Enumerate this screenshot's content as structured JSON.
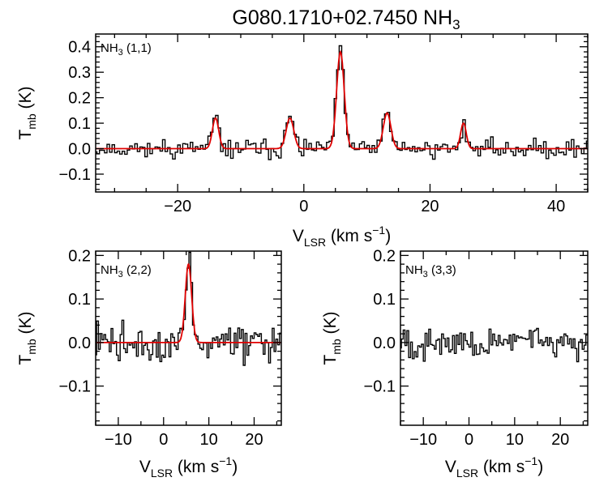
{
  "title": {
    "main": "G080.1710+02.7450 NH",
    "sub": "3"
  },
  "ylabel": {
    "main": "T",
    "sub": "mb",
    "unit": " (K)"
  },
  "xlabel": {
    "main": "V",
    "sub": "LSR",
    "unit": " (km s",
    "sup": "−1",
    "close": ")"
  },
  "colors": {
    "data": "#000000",
    "fit": "#e00000",
    "background": "#ffffff"
  },
  "chart_data": [
    {
      "type": "line",
      "id": "panel-11",
      "label": {
        "prefix": "NH",
        "sub": "3",
        "suffix": " (1,1)"
      },
      "xlim": [
        -33,
        45
      ],
      "ylim": [
        -0.17,
        0.45
      ],
      "xticks": [
        -20,
        0,
        20,
        40
      ],
      "xtick_labels": [
        "−20",
        "0",
        "20",
        "40"
      ],
      "yticks": [
        -0.1,
        0.0,
        0.1,
        0.2,
        0.3,
        0.4
      ],
      "ytick_labels": [
        "−0.1",
        "0.0",
        "0.1",
        "0.2",
        "0.3",
        "0.4"
      ],
      "has_xlabel": true,
      "noise": 0.035,
      "seed": 11,
      "components": [
        {
          "center": -14.0,
          "amp": 0.12,
          "sigma": 0.5
        },
        {
          "center": -2.2,
          "amp": 0.12,
          "sigma": 0.6
        },
        {
          "center": 5.8,
          "amp": 0.38,
          "sigma": 0.6
        },
        {
          "center": 13.2,
          "amp": 0.14,
          "sigma": 0.6
        },
        {
          "center": 25.3,
          "amp": 0.1,
          "sigma": 0.45
        }
      ],
      "series": [
        {
          "name": "observed spectrum",
          "style": "histogram",
          "x_range": [
            -33,
            45
          ],
          "step": 0.4
        },
        {
          "name": "hyperfine fit",
          "style": "smooth",
          "x_range": [
            -33,
            45
          ]
        }
      ]
    },
    {
      "type": "line",
      "id": "panel-22",
      "label": {
        "prefix": "NH",
        "sub": "3",
        "suffix": " (2,2)"
      },
      "xlim": [
        -15,
        26
      ],
      "ylim": [
        -0.19,
        0.21
      ],
      "xticks": [
        -10,
        0,
        10,
        20
      ],
      "xtick_labels": [
        "−10",
        "0",
        "10",
        "20"
      ],
      "yticks": [
        -0.1,
        0.0,
        0.1,
        0.2
      ],
      "ytick_labels": [
        "−0.1",
        "0.0",
        "0.1",
        "0.2"
      ],
      "has_xlabel": true,
      "noise": 0.04,
      "seed": 22,
      "components": [
        {
          "center": 5.5,
          "amp": 0.18,
          "sigma": 0.7
        }
      ],
      "series": [
        {
          "name": "observed spectrum",
          "style": "histogram",
          "x_range": [
            -15,
            26
          ],
          "step": 0.4
        },
        {
          "name": "hyperfine fit",
          "style": "smooth",
          "x_range": [
            -15,
            26
          ]
        }
      ]
    },
    {
      "type": "line",
      "id": "panel-33",
      "label": {
        "prefix": "NH",
        "sub": "3",
        "suffix": " (3,3)"
      },
      "xlim": [
        -15,
        26
      ],
      "ylim": [
        -0.19,
        0.21
      ],
      "xticks": [
        -10,
        0,
        10,
        20
      ],
      "xtick_labels": [
        "−10",
        "0",
        "10",
        "20"
      ],
      "yticks": [
        -0.1,
        0.0,
        0.1,
        0.2
      ],
      "ytick_labels": [
        "−0.1",
        "0.0",
        "0.1",
        "0.2"
      ],
      "has_xlabel": true,
      "noise": 0.035,
      "seed": 33,
      "components": [],
      "series": [
        {
          "name": "observed spectrum",
          "style": "histogram",
          "x_range": [
            -15,
            26
          ],
          "step": 0.4
        }
      ]
    }
  ]
}
